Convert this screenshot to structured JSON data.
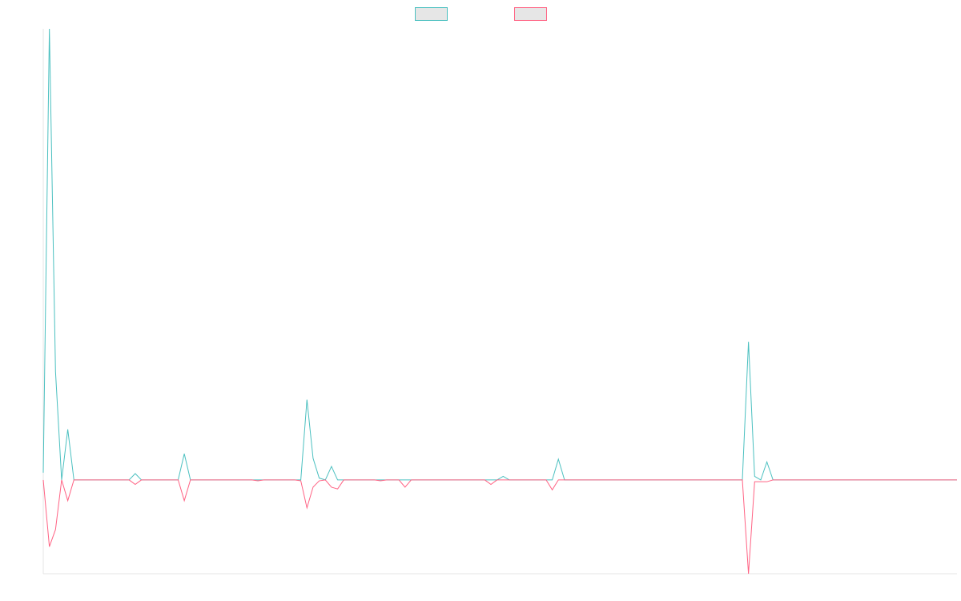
{
  "chart_data": {
    "type": "line",
    "title": "",
    "xlabel": "",
    "ylabel": "",
    "x": [
      0,
      1,
      2,
      3,
      4,
      5,
      6,
      7,
      8,
      9,
      10,
      11,
      12,
      13,
      14,
      15,
      16,
      17,
      18,
      19,
      20,
      21,
      22,
      23,
      24,
      25,
      26,
      27,
      28,
      29,
      30,
      31,
      32,
      33,
      34,
      35,
      36,
      37,
      38,
      39,
      40,
      41,
      42,
      43,
      44,
      45,
      46,
      47,
      48,
      49,
      50,
      51,
      52,
      53,
      54,
      55,
      56,
      57,
      58,
      59,
      60,
      61,
      62,
      63,
      64,
      65,
      66,
      67,
      68,
      69,
      70,
      71,
      72,
      73,
      74,
      75,
      76,
      77,
      78,
      79,
      80,
      81,
      82,
      83,
      84,
      85,
      86,
      87,
      88,
      89,
      90,
      91,
      92,
      93,
      94,
      95,
      96,
      97,
      98,
      99,
      100,
      101,
      102,
      103,
      104,
      105,
      106,
      107,
      108,
      109,
      110,
      111,
      112,
      113,
      114,
      115,
      116,
      117,
      118,
      119,
      120,
      121,
      122,
      123,
      124,
      125,
      126,
      127,
      128,
      129,
      130,
      131,
      132,
      133,
      134,
      135,
      136,
      137,
      138,
      139,
      140,
      141,
      142,
      143,
      144,
      145,
      146,
      147,
      148,
      149
    ],
    "ylim": [
      -104,
      500
    ],
    "grid": false,
    "legend_position": "top",
    "series": [
      {
        "color": "#4bc0c0",
        "values": [
          8,
          500,
          120,
          0,
          56,
          0,
          0,
          0,
          0,
          0,
          0,
          0,
          0,
          0,
          0,
          7,
          0,
          0,
          0,
          0,
          0,
          0,
          0,
          29,
          0,
          0,
          0,
          0,
          0,
          0,
          0,
          0,
          0,
          0,
          0,
          0,
          0,
          0,
          0,
          0,
          0,
          0,
          0,
          89,
          24,
          2,
          0,
          15,
          0,
          0,
          0,
          0,
          0,
          0,
          0,
          0,
          0,
          0,
          0,
          0,
          0,
          0,
          0,
          0,
          0,
          0,
          0,
          0,
          0,
          0,
          0,
          0,
          0,
          0,
          0,
          4,
          0,
          0,
          0,
          0,
          0,
          0,
          0,
          0,
          23,
          0,
          0,
          0,
          0,
          0,
          0,
          0,
          0,
          0,
          0,
          0,
          0,
          0,
          0,
          0,
          0,
          0,
          0,
          0,
          0,
          0,
          0,
          0,
          0,
          0,
          0,
          0,
          0,
          0,
          0,
          153,
          4,
          0,
          20,
          0,
          0,
          0,
          0,
          0,
          0,
          0,
          0,
          0,
          0,
          0,
          0,
          0,
          0,
          0,
          0,
          0,
          0,
          0,
          0,
          0,
          0,
          0,
          0,
          0,
          0,
          0,
          0,
          0,
          0,
          0
        ]
      },
      {
        "color": "#ff6384",
        "values": [
          0,
          -74,
          -55,
          0,
          -23,
          0,
          0,
          0,
          0,
          0,
          0,
          0,
          0,
          0,
          0,
          -5,
          0,
          0,
          0,
          0,
          0,
          0,
          0,
          -23,
          0,
          0,
          0,
          0,
          0,
          0,
          0,
          0,
          0,
          0,
          0,
          -1,
          0,
          0,
          0,
          0,
          0,
          0,
          -1,
          -31,
          -8,
          -1,
          0,
          -8,
          -10,
          0,
          0,
          0,
          0,
          0,
          0,
          -1,
          0,
          0,
          0,
          -8,
          0,
          0,
          0,
          0,
          0,
          0,
          0,
          0,
          0,
          0,
          0,
          0,
          0,
          -5,
          0,
          0,
          0,
          0,
          0,
          0,
          0,
          0,
          0,
          -11,
          0,
          0,
          0,
          0,
          0,
          0,
          0,
          0,
          0,
          0,
          0,
          0,
          0,
          0,
          0,
          0,
          0,
          0,
          0,
          0,
          0,
          0,
          0,
          0,
          0,
          0,
          0,
          0,
          0,
          0,
          0,
          -104,
          -2,
          -2,
          -2,
          0,
          0,
          0,
          0,
          0,
          0,
          0,
          0,
          0,
          0,
          0,
          0,
          0,
          0,
          0,
          0,
          0,
          0,
          0,
          0,
          0,
          0,
          0,
          0,
          0,
          0,
          0,
          0,
          0,
          0,
          0
        ]
      }
    ]
  }
}
